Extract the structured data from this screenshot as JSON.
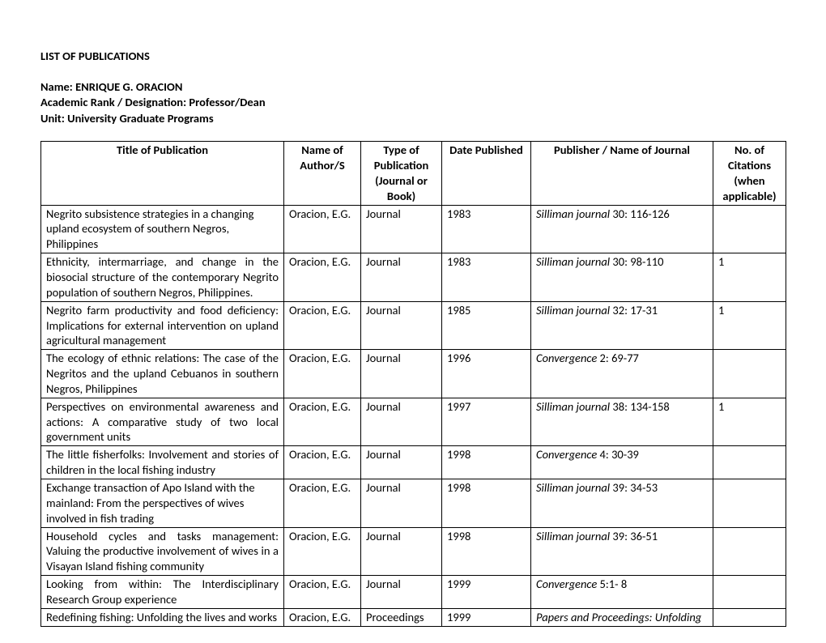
{
  "header": {
    "title": "LIST OF PUBLICATIONS",
    "name_label": "Name: ",
    "name_value": "ENRIQUE G. ORACION",
    "rank_label": "Academic Rank / Designation:  ",
    "rank_value": "Professor/Dean",
    "unit_label": "Unit: ",
    "unit_value": "University Graduate Programs"
  },
  "table": {
    "columns": {
      "title": "Title of Publication",
      "author": "Name of Author/S",
      "type": "Type of Publication (Journal or Book)",
      "date": "Date Published",
      "publisher": "Publisher / Name of Journal",
      "citations": "No. of Citations (when applicable)"
    },
    "rows": [
      {
        "title": "Negrito subsistence strategies in a changing upland ecosystem of southern Negros, Philippines",
        "title_justify": false,
        "author": "Oracion, E.G.",
        "type": "Journal",
        "date": "1983",
        "publisher_italic": "Silliman journal",
        "publisher_rest": " 30: 116-126",
        "citations": ""
      },
      {
        "title": "Ethnicity, intermarriage, and change in the biosocial structure of the contemporary Negrito population of southern Negros, Philippines.",
        "title_justify": true,
        "author": "Oracion, E.G.",
        "type": "Journal",
        "date": "1983",
        "publisher_italic": "Silliman journal",
        "publisher_rest": " 30: 98-110",
        "citations": "1"
      },
      {
        "title": "Negrito farm productivity and food deficiency: Implications for external intervention on upland agricultural management",
        "title_justify": true,
        "author": "Oracion, E.G.",
        "type": "Journal",
        "date": "1985",
        "publisher_italic": "Silliman journal",
        "publisher_rest": " 32: 17-31",
        "citations": "1"
      },
      {
        "title": "The ecology of ethnic relations: The case of the Negritos and the upland Cebuanos in southern Negros, Philippines",
        "title_justify": true,
        "author": "Oracion, E.G.",
        "type": "Journal",
        "date": "1996",
        "publisher_italic": "Convergence",
        "publisher_rest": " 2: 69-77",
        "citations": ""
      },
      {
        "title": "Perspectives on environmental awareness and actions: A comparative study of two local government units",
        "title_justify": true,
        "author": "Oracion, E.G.",
        "type": "Journal",
        "date": "1997",
        "publisher_italic": "Silliman journal",
        "publisher_rest": " 38: 134-158",
        "citations": "1"
      },
      {
        "title": "The little fisherfolks: Involvement and stories of children in the local fishing industry",
        "title_justify": true,
        "author": "Oracion, E.G.",
        "type": "Journal",
        "date": "1998",
        "publisher_italic": "Convergence",
        "publisher_rest": " 4: 30-39",
        "citations": ""
      },
      {
        "title": "Exchange transaction of Apo Island with the mainland: From the perspectives of wives involved in fish trading",
        "title_justify": false,
        "author": "Oracion, E.G.",
        "type": "Journal",
        "date": "1998",
        "publisher_italic": "Silliman journal",
        "publisher_rest": " 39: 34-53",
        "citations": ""
      },
      {
        "title": "Household cycles and tasks management: Valuing the productive involvement of wives in a Visayan Island fishing community",
        "title_justify": true,
        "author": "Oracion, E.G.",
        "type": "Journal",
        "date": "1998",
        "publisher_italic": "Silliman journal",
        "publisher_rest": " 39: 36-51",
        "citations": ""
      },
      {
        "title": "Looking from within: The Interdisciplinary Research Group experience",
        "title_justify": true,
        "author": "Oracion, E.G.",
        "type": "Journal",
        "date": "1999",
        "publisher_italic": "Convergence",
        "publisher_rest": " 5:1- 8",
        "citations": ""
      },
      {
        "title": "Redefining fishing: Unfolding the lives and works",
        "title_justify": true,
        "author": "Oracion, E.G.",
        "type": "Proceedings",
        "date": "1999",
        "publisher_italic": "Papers and Proceedings: Unfolding",
        "publisher_rest": "",
        "citations": ""
      }
    ]
  }
}
